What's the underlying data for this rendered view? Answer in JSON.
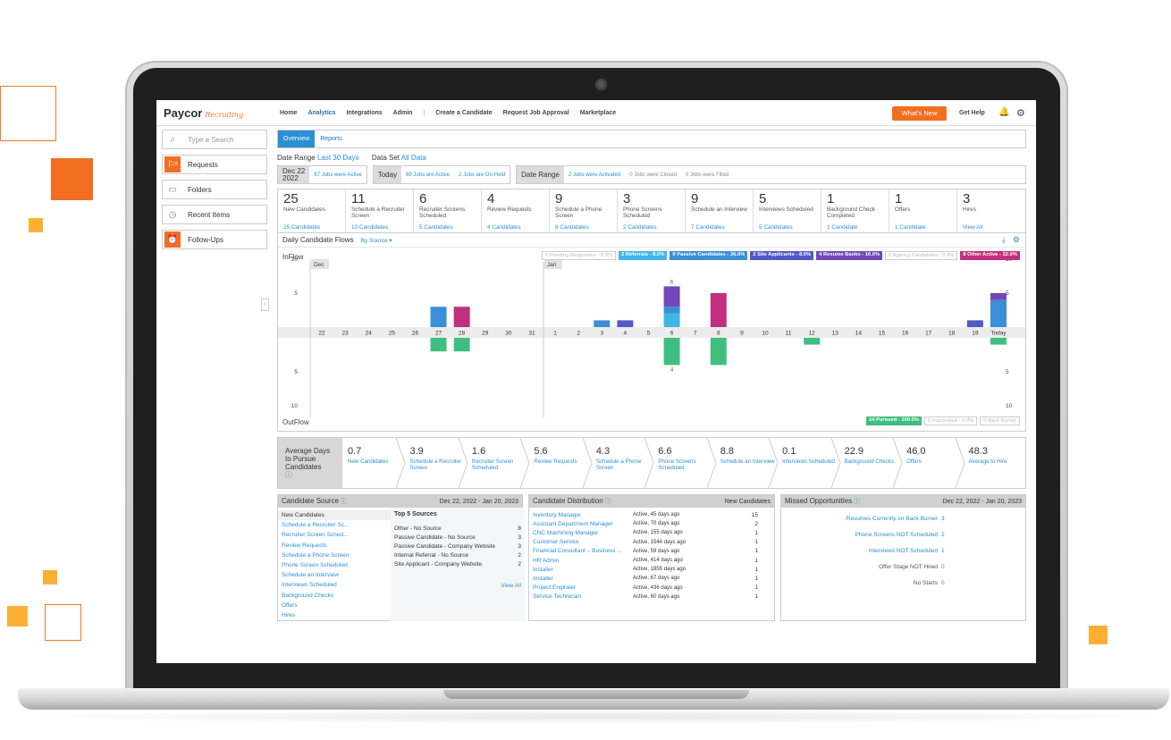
{
  "app": {
    "logo": "Paycor",
    "logo_sub": "Recruiting",
    "nav": [
      "Home",
      "Analytics",
      "Integrations",
      "Admin",
      "Create a Candidate",
      "Request Job Approval",
      "Marketplace"
    ],
    "active_nav": "Analytics",
    "whats_new": "What's New",
    "get_help": "Get Help"
  },
  "sidebar": {
    "search_placeholder": "Type a Search",
    "items": [
      {
        "label": "Requests",
        "icon": "flag-icon",
        "badge": "5"
      },
      {
        "label": "Folders",
        "icon": "folder-icon"
      },
      {
        "label": "Recent Items",
        "icon": "clock-icon"
      },
      {
        "label": "Follow-Ups",
        "icon": "alarm-icon"
      }
    ]
  },
  "tabs": [
    "Overview",
    "Reports"
  ],
  "date_range": {
    "label": "Date Range",
    "value": "Last 30 Days",
    "dataset_label": "Data Set",
    "dataset_value": "All Data"
  },
  "status": {
    "date_line1": "Dec 22",
    "date_line2": "2022",
    "jobs_active": "67 Jobs were Active",
    "today_label": "Today",
    "today_active": "69 Jobs are Active",
    "today_hold": "2 Jobs are On-Hold",
    "range_label": "Date Range",
    "activated": "2 Jobs were Activated",
    "closed": "0 Jobs were Closed",
    "filled": "0 Jobs were Filled"
  },
  "stats": [
    {
      "num": "25",
      "label": "New Candidates",
      "link": "25 Candidates"
    },
    {
      "num": "11",
      "label": "Schedule a Recruiter Screen",
      "link": "10 Candidates"
    },
    {
      "num": "6",
      "label": "Recruiter Screens Scheduled",
      "link": "5 Candidates"
    },
    {
      "num": "4",
      "label": "Review Requests",
      "link": "4 Candidates"
    },
    {
      "num": "9",
      "label": "Schedule a Phone Screen",
      "link": "8 Candidates"
    },
    {
      "num": "3",
      "label": "Phone Screens Scheduled",
      "link": "2 Candidates"
    },
    {
      "num": "9",
      "label": "Schedule an Interview",
      "link": "7 Candidates"
    },
    {
      "num": "5",
      "label": "Interviews Scheduled",
      "link": "5 Candidates"
    },
    {
      "num": "1",
      "label": "Background Check Completed",
      "link": "1 Candidate"
    },
    {
      "num": "1",
      "label": "Offers",
      "link": "1 Candidate"
    },
    {
      "num": "3",
      "label": "Hires",
      "link": "View All"
    }
  ],
  "chart_data": {
    "type": "bar",
    "title": "Daily Candidate Flows",
    "grouping": "By Source",
    "inflow_label": "InFlow",
    "outflow_label": "OutFlow",
    "categories": [
      "22",
      "23",
      "24",
      "25",
      "26",
      "27",
      "28",
      "29",
      "30",
      "31",
      "1",
      "2",
      "3",
      "4",
      "5",
      "6",
      "7",
      "8",
      "9",
      "10",
      "11",
      "12",
      "13",
      "14",
      "15",
      "16",
      "17",
      "18",
      "19",
      "Today"
    ],
    "month_markers": [
      {
        "label": "Dec",
        "index": 0
      },
      {
        "label": "Jan",
        "index": 10
      }
    ],
    "ylim": [
      0,
      10
    ],
    "yticks": [
      10,
      5
    ],
    "inflow_series": [
      {
        "name": "Pending Responses - 0.0%",
        "color": "#ffffff",
        "active": false,
        "values": [
          0,
          0,
          0,
          0,
          0,
          0,
          0,
          0,
          0,
          0,
          0,
          0,
          0,
          0,
          0,
          0,
          0,
          0,
          0,
          0,
          0,
          0,
          0,
          0,
          0,
          0,
          0,
          0,
          0,
          0
        ]
      },
      {
        "name": "Referrals - 8.0%",
        "color": "#41b6e6",
        "active": true,
        "values": [
          0,
          0,
          0,
          0,
          0,
          0,
          0,
          0,
          0,
          0,
          0,
          0,
          0,
          0,
          0,
          2,
          0,
          0,
          0,
          0,
          0,
          0,
          0,
          0,
          0,
          0,
          0,
          0,
          0,
          0
        ]
      },
      {
        "name": "Passive Candidates - 36.0%",
        "color": "#3b8fd8",
        "active": true,
        "values": [
          0,
          0,
          0,
          0,
          0,
          3,
          0,
          0,
          0,
          0,
          0,
          0,
          1,
          0,
          0,
          1,
          0,
          0,
          0,
          0,
          0,
          0,
          0,
          0,
          0,
          0,
          0,
          0,
          0,
          4
        ]
      },
      {
        "name": "Site Applicants - 8.0%",
        "color": "#5258c6",
        "active": true,
        "values": [
          0,
          0,
          0,
          0,
          0,
          0,
          0,
          0,
          0,
          0,
          0,
          0,
          0,
          1,
          0,
          0,
          0,
          0,
          0,
          0,
          0,
          0,
          0,
          0,
          0,
          0,
          0,
          0,
          1,
          0
        ]
      },
      {
        "name": "Resume Banks - 16.0%",
        "color": "#7446b8",
        "active": true,
        "values": [
          0,
          0,
          0,
          0,
          0,
          0,
          0,
          0,
          0,
          0,
          0,
          0,
          0,
          0,
          0,
          3,
          0,
          0,
          0,
          0,
          0,
          0,
          0,
          0,
          0,
          0,
          0,
          0,
          0,
          1
        ]
      },
      {
        "name": "Agency Candidates - 0.0%",
        "color": "#ffffff",
        "active": false,
        "values": [
          0,
          0,
          0,
          0,
          0,
          0,
          0,
          0,
          0,
          0,
          0,
          0,
          0,
          0,
          0,
          0,
          0,
          0,
          0,
          0,
          0,
          0,
          0,
          0,
          0,
          0,
          0,
          0,
          0,
          0
        ]
      },
      {
        "name": "Other Active - 32.0%",
        "color": "#c0307e",
        "active": true,
        "values": [
          0,
          0,
          0,
          0,
          0,
          0,
          3,
          0,
          0,
          0,
          0,
          0,
          0,
          0,
          0,
          0,
          0,
          5,
          0,
          0,
          0,
          0,
          0,
          0,
          0,
          0,
          0,
          0,
          0,
          0
        ]
      }
    ],
    "outflow_series": [
      {
        "name": "Pursued - 100.0%",
        "color": "#3fbf7f",
        "active": true,
        "values": [
          0,
          0,
          0,
          0,
          0,
          2,
          2,
          0,
          0,
          0,
          0,
          0,
          0,
          0,
          0,
          4,
          0,
          4,
          0,
          0,
          0,
          1,
          0,
          0,
          0,
          0,
          0,
          0,
          0,
          1
        ]
      },
      {
        "name": "Inactivated - 0.0%",
        "color": "#ffffff",
        "active": false,
        "values": [
          0,
          0,
          0,
          0,
          0,
          0,
          0,
          0,
          0,
          0,
          0,
          0,
          0,
          0,
          0,
          0,
          0,
          0,
          0,
          0,
          0,
          0,
          0,
          0,
          0,
          0,
          0,
          0,
          0,
          0
        ]
      },
      {
        "name": "Back Burner",
        "color": "#ffffff",
        "active": false,
        "values": [
          0,
          0,
          0,
          0,
          0,
          0,
          0,
          0,
          0,
          0,
          0,
          0,
          0,
          0,
          0,
          0,
          0,
          0,
          0,
          0,
          0,
          0,
          0,
          0,
          0,
          0,
          0,
          0,
          0,
          0
        ]
      }
    ],
    "legend_in": [
      "0 Pending Responses - 0.0%",
      "2 Referrals - 8.0%",
      "9 Passive Candidates - 36.0%",
      "2 Site Applicants - 8.0%",
      "4 Resume Banks - 16.0%",
      "0 Agency Candidates - 0.0%",
      "8 Other Active - 32.0%"
    ],
    "legend_out": [
      "14 Pursued - 100.0%",
      "0 Inactivated - 0.0%",
      "0 Back Burner"
    ],
    "data_labels": [
      {
        "index": 15,
        "inflow_total": "6",
        "outflow_total": "4"
      }
    ]
  },
  "pipeline": {
    "title": "Average Days to Pursue Candidates",
    "steps": [
      {
        "value": "0.7",
        "label": "New Candidates"
      },
      {
        "value": "3.9",
        "label": "Schedule a Recruiter Screen"
      },
      {
        "value": "1.6",
        "label": "Recruiter Screen Scheduled"
      },
      {
        "value": "5.6",
        "label": "Review Requests"
      },
      {
        "value": "4.3",
        "label": "Schedule a Phone Screen"
      },
      {
        "value": "6.6",
        "label": "Phone Screens Scheduled"
      },
      {
        "value": "8.8",
        "label": "Schedule an Interview"
      },
      {
        "value": "0.1",
        "label": "Interviews Scheduled"
      },
      {
        "value": "22.9",
        "label": "Background Checks"
      },
      {
        "value": "46.0",
        "label": "Offers"
      },
      {
        "value": "48.3",
        "label": "Average to Hire"
      }
    ]
  },
  "source_panel": {
    "title": "Candidate Source",
    "range": "Dec 22, 2022 - Jan 20, 2023",
    "list": [
      "New Candidates",
      "Schedule a Recruiter Sc...",
      "Recruiter Screen Sched...",
      "Review Requests",
      "Schedule a Phone Screen",
      "Phone Screen Scheduled",
      "Schedule an Interview",
      "Interviews Scheduled",
      "Background Checks",
      "Offers",
      "Hires"
    ],
    "top_title": "Top 5 Sources",
    "top": [
      {
        "name": "Other - No Source",
        "count": "8"
      },
      {
        "name": "Passive Candidate - No Source",
        "count": "3"
      },
      {
        "name": "Passive Candidate - Company Website",
        "count": "3"
      },
      {
        "name": "Internal Referral - No Source",
        "count": "2"
      },
      {
        "name": "Site Applicant - Company Website",
        "count": "2"
      }
    ],
    "view_all": "View All"
  },
  "distribution_panel": {
    "title": "Candidate Distribution",
    "right": "New Candidates",
    "rows": [
      {
        "job": "Inventory Manager",
        "status": "Active, 45 days ago",
        "count": "15"
      },
      {
        "job": "Assistant Department Manager",
        "status": "Active, 70 days ago",
        "count": "2"
      },
      {
        "job": "CNC Machining Manager",
        "status": "Active, 155 days ago",
        "count": "1"
      },
      {
        "job": "Customer Service",
        "status": "Active, 1544 days ago",
        "count": "1"
      },
      {
        "job": "Financial Consultant – Business ...",
        "status": "Active, 59 days ago",
        "count": "1"
      },
      {
        "job": "HR Admin",
        "status": "Active, 414 days ago",
        "count": "1"
      },
      {
        "job": "Installer",
        "status": "Active, 1855 days ago",
        "count": "1"
      },
      {
        "job": "Installer",
        "status": "Active, 67 days ago",
        "count": "1"
      },
      {
        "job": "Project Engineer",
        "status": "Active, 436 days ago",
        "count": "1"
      },
      {
        "job": "Service Technician",
        "status": "Active, 60 days ago",
        "count": "1"
      }
    ]
  },
  "missed_panel": {
    "title": "Missed Opportunities",
    "range": "Dec 22, 2022 - Jan 20, 2023",
    "rows": [
      {
        "label": "Resumes Currently on Back Burner",
        "value": "3",
        "link": true
      },
      {
        "label": "Phone Screens NOT Scheduled",
        "value": "2",
        "link": true
      },
      {
        "label": "Interviews NOT Scheduled",
        "value": "1",
        "link": true
      },
      {
        "label": "Offer Stage NOT Hired",
        "value": "0",
        "link": false
      },
      {
        "label": "No Starts",
        "value": "0",
        "link": false
      }
    ]
  }
}
